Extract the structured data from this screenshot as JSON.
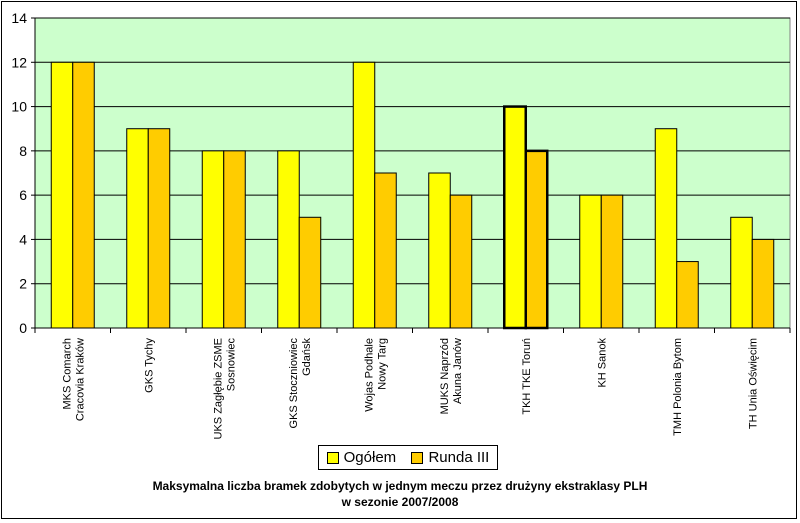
{
  "chart_data": {
    "type": "bar",
    "title": "Maksymalna liczba bramek zdobytych w jednym meczu przez drużyny ekstraklasy PLH",
    "subtitle": "w sezonie 2007/2008",
    "categories": [
      [
        "MKS Comarch",
        "Cracovia Kraków"
      ],
      [
        "GKS Tychy"
      ],
      [
        "UKS Zagłębie ZSME",
        "Sosnowiec"
      ],
      [
        "GKS Stoczniowiec",
        "Gdańsk"
      ],
      [
        "Wojas Podhale",
        "Nowy Targ"
      ],
      [
        "MUKS Naprzód",
        "Akuna Janów"
      ],
      [
        "TKH TKE Toruń"
      ],
      [
        "KH Sanok"
      ],
      [
        "TMH Polonia Bytom"
      ],
      [
        "TH Unia Oświęcim"
      ]
    ],
    "series": [
      {
        "name": "Ogółem",
        "color": "#ffff00",
        "values": [
          12,
          9,
          8,
          8,
          12,
          7,
          10,
          6,
          9,
          5
        ]
      },
      {
        "name": "Runda III",
        "color": "#ffcc00",
        "values": [
          12,
          9,
          8,
          5,
          7,
          6,
          8,
          6,
          3,
          4
        ]
      }
    ],
    "highlighted_category_index": 6,
    "ylim": [
      0,
      14
    ],
    "yticks": [
      0,
      2,
      4,
      6,
      8,
      10,
      12,
      14
    ],
    "grid": true,
    "plot_background": "#ccffcc",
    "legend_position": "bottom"
  }
}
